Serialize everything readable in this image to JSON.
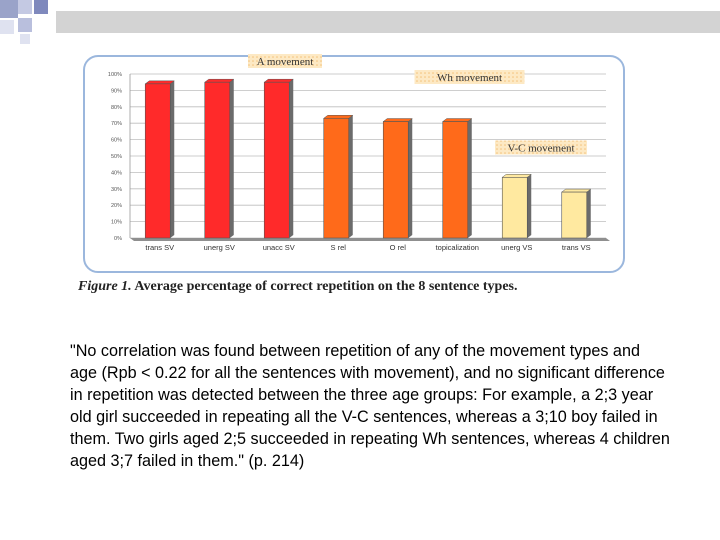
{
  "chart_data": {
    "type": "bar",
    "categories": [
      "trans SV",
      "unerg SV",
      "unacc SV",
      "S rel",
      "O rel",
      "topicalization",
      "unerg VS",
      "trans VS"
    ],
    "values": [
      94,
      95,
      95,
      73,
      71,
      71,
      37,
      28
    ],
    "yticks": [
      "0%",
      "10%",
      "20%",
      "30%",
      "40%",
      "50%",
      "60%",
      "70%",
      "80%",
      "90%",
      "100%"
    ],
    "ylim": [
      0,
      100
    ],
    "bar_groups": [
      {
        "label": "A movement",
        "color": "#ff2a2a"
      },
      {
        "label": "Wh movement",
        "color": "#ff6a1a"
      },
      {
        "label": "V-C movement",
        "color": "#ffe9a0"
      }
    ],
    "colors": [
      "#ff2a2a",
      "#ff2a2a",
      "#ff2a2a",
      "#ff6a1a",
      "#ff6a1a",
      "#ff6a1a",
      "#ffe9a0",
      "#ffe9a0"
    ],
    "grid": true
  },
  "caption": {
    "figure_label": "Figure 1.",
    "text": "Average percentage of correct repetition on the 8 sentence types."
  },
  "quote": "\"No correlation was found between repetition of any of the movement types and age (Rpb < 0.22 for all the sentences with movement), and no significant difference in repetition was detected between the three age groups: For example, a 2;3 year old girl succeeded in repeating all the V-C sentences, whereas a 3;10 boy failed in them. Two girls aged 2;5 succeeded in repeating Wh sentences, whereas 4 children aged 3;7 failed in them.\" (p. 214)"
}
